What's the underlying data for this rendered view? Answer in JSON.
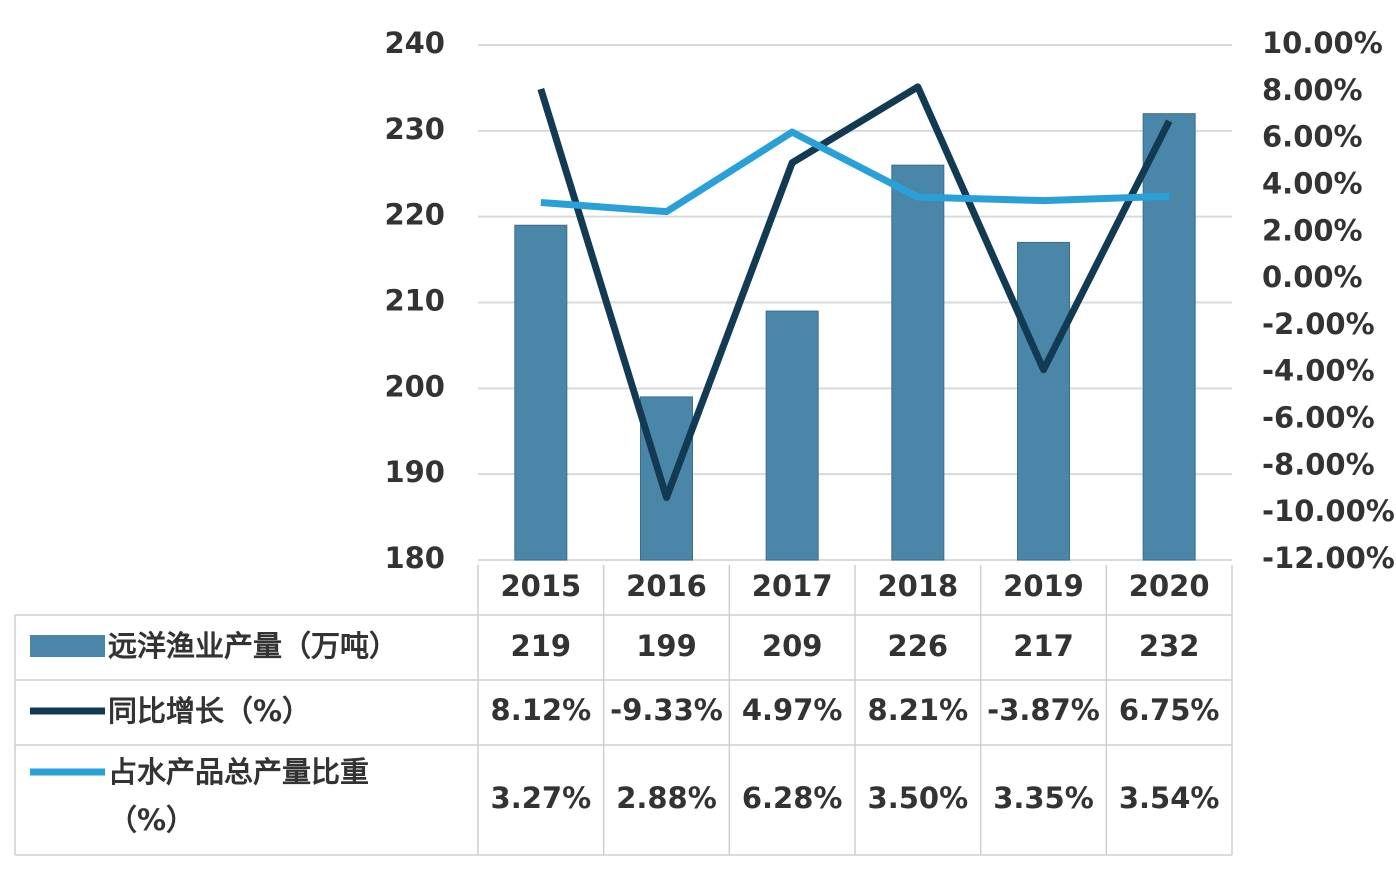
{
  "chart_data": {
    "type": "combo",
    "categories": [
      "2015",
      "2016",
      "2017",
      "2018",
      "2019",
      "2020"
    ],
    "series": [
      {
        "name": "远洋渔业产量（万吨）",
        "type": "bar",
        "color": "#4a86a8",
        "values": [
          219,
          199,
          209,
          226,
          217,
          232
        ]
      },
      {
        "name": "同比增长（%）",
        "type": "line",
        "axis": "y2",
        "color": "#123a52",
        "values": [
          8.12,
          -9.33,
          4.97,
          8.21,
          -3.87,
          6.75
        ],
        "value_labels": [
          "8.12%",
          "-9.33%",
          "4.97%",
          "8.21%",
          "-3.87%",
          "6.75%"
        ]
      },
      {
        "name": "占水产品总产量比重（%）",
        "type": "line",
        "axis": "y2",
        "color": "#2aa0d8",
        "values": [
          3.27,
          2.88,
          6.28,
          3.5,
          3.35,
          3.54
        ],
        "value_labels": [
          "3.27%",
          "2.88%",
          "6.28%",
          "3.50%",
          "3.35%",
          "3.54%"
        ]
      }
    ],
    "ylim": [
      180,
      240
    ],
    "yticks": [
      180,
      190,
      200,
      210,
      220,
      230,
      240
    ],
    "y2lim": [
      -12,
      10
    ],
    "y2ticks": [
      {
        "value": -12,
        "label": "-12.00%"
      },
      {
        "value": -10,
        "label": "-10.00%"
      },
      {
        "value": -8,
        "label": "-8.00%"
      },
      {
        "value": -6,
        "label": "-6.00%"
      },
      {
        "value": -4,
        "label": "-4.00%"
      },
      {
        "value": -2,
        "label": "-2.00%"
      },
      {
        "value": 0,
        "label": "0.00%"
      },
      {
        "value": 2,
        "label": "2.00%"
      },
      {
        "value": 4,
        "label": "4.00%"
      },
      {
        "value": 6,
        "label": "6.00%"
      },
      {
        "value": 8,
        "label": "8.00%"
      },
      {
        "value": 10,
        "label": "10.00%"
      }
    ],
    "grid": true,
    "data_table": true
  }
}
